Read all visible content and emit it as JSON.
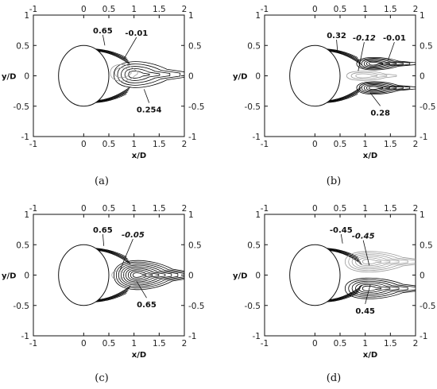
{
  "chart_data": [
    {
      "type": "contour",
      "panel": "(a)",
      "xlabel": "x/D",
      "ylabel": "y/D",
      "xlim": [
        -1,
        2
      ],
      "ylim": [
        -1,
        1
      ],
      "x_ticks": [
        "-1",
        "0",
        "0.5",
        "1",
        "1.5",
        "2"
      ],
      "y_ticks": [
        "-1",
        "-0.5",
        "0",
        "0.5",
        "1"
      ],
      "cylinder": {
        "center": [
          0,
          0
        ],
        "radius": 0.5
      },
      "lobes": [
        {
          "cx": 1.0,
          "cy": 0.02,
          "rx": 0.4,
          "ry": 0.25,
          "tail": 0.72,
          "levels": 5,
          "sign": "positive",
          "color": "#000000"
        },
        {
          "cx": 0.75,
          "cy": 0.05,
          "rx": 0.22,
          "ry": 0.16,
          "tail": 0.1,
          "levels": 2,
          "sign": "negative",
          "color": "#9a9a9a"
        }
      ],
      "shear_layers": true,
      "annotations": [
        {
          "text": "0.65",
          "x": 0.38,
          "y": 0.7,
          "tip": [
            0.42,
            0.5
          ],
          "italic": false
        },
        {
          "text": "-0.01",
          "x": 1.05,
          "y": 0.66,
          "tip": [
            0.8,
            0.28
          ],
          "italic": false
        },
        {
          "text": "0.254",
          "x": 1.3,
          "y": -0.55,
          "tip": [
            1.2,
            -0.22
          ],
          "italic": false
        }
      ]
    },
    {
      "type": "contour",
      "panel": "(b)",
      "xlabel": "x/D",
      "ylabel": "y/D",
      "xlim": [
        -1,
        2
      ],
      "ylim": [
        -1,
        1
      ],
      "x_ticks": [
        "-1",
        "0",
        "0.5",
        "1",
        "1.5",
        "2"
      ],
      "y_ticks": [
        "-1",
        "-0.5",
        "0",
        "0.5",
        "1"
      ],
      "cylinder": {
        "center": [
          0,
          0
        ],
        "radius": 0.5
      },
      "lobes": [
        {
          "cx": 1.15,
          "cy": 0.2,
          "rx": 0.32,
          "ry": 0.12,
          "tail": 0.55,
          "levels": 6,
          "sign": "positive",
          "color": "#000000"
        },
        {
          "cx": 1.15,
          "cy": -0.2,
          "rx": 0.32,
          "ry": 0.12,
          "tail": 0.55,
          "levels": 6,
          "sign": "positive",
          "color": "#000000"
        },
        {
          "cx": 0.95,
          "cy": 0.0,
          "rx": 0.32,
          "ry": 0.09,
          "tail": 0.35,
          "levels": 3,
          "sign": "negative",
          "color": "#9a9a9a"
        }
      ],
      "shear_layers": true,
      "annotations": [
        {
          "text": "0.32",
          "x": 0.43,
          "y": 0.62,
          "tip": [
            0.45,
            0.4
          ],
          "italic": false
        },
        {
          "text": "-0.12",
          "x": 0.98,
          "y": 0.58,
          "tip": [
            0.86,
            0.08
          ],
          "italic": true
        },
        {
          "text": "-0.01",
          "x": 1.58,
          "y": 0.58,
          "tip": [
            1.45,
            0.25
          ],
          "italic": false
        },
        {
          "text": "0.28",
          "x": 1.3,
          "y": -0.6,
          "tip": [
            1.1,
            -0.28
          ],
          "italic": false
        }
      ]
    },
    {
      "type": "contour",
      "panel": "(c)",
      "xlabel": "x/D",
      "ylabel": "y/D",
      "xlim": [
        -1,
        2
      ],
      "ylim": [
        -1,
        1
      ],
      "x_ticks": [
        "-1",
        "0",
        "0.5",
        "1",
        "1.5",
        "2"
      ],
      "y_ticks": [
        "-1",
        "-0.5",
        "0",
        "0.5",
        "1"
      ],
      "cylinder": {
        "center": [
          0,
          0
        ],
        "radius": 0.5
      },
      "lobes": [
        {
          "cx": 1.05,
          "cy": 0.0,
          "rx": 0.45,
          "ry": 0.28,
          "tail": 0.75,
          "levels": 9,
          "sign": "positive",
          "color": "#000000"
        },
        {
          "cx": 0.68,
          "cy": 0.0,
          "rx": 0.12,
          "ry": 0.08,
          "tail": 0.0,
          "levels": 1,
          "sign": "negative",
          "color": "#9a9a9a"
        }
      ],
      "shear_layers": true,
      "annotations": [
        {
          "text": "0.65",
          "x": 0.38,
          "y": 0.7,
          "tip": [
            0.4,
            0.48
          ],
          "italic": false
        },
        {
          "text": "-0.05",
          "x": 0.98,
          "y": 0.62,
          "tip": [
            0.72,
            0.08
          ],
          "italic": true
        },
        {
          "text": "0.65",
          "x": 1.25,
          "y": -0.48,
          "tip": [
            1.05,
            -0.1
          ],
          "italic": false
        }
      ]
    },
    {
      "type": "contour",
      "panel": "(d)",
      "xlabel": "x/D",
      "ylabel": "y/D",
      "xlim": [
        -1,
        2
      ],
      "ylim": [
        -1,
        1
      ],
      "x_ticks": [
        "-1",
        "0",
        "0.5",
        "1",
        "1.5",
        "2"
      ],
      "y_ticks": [
        "-1",
        "-0.5",
        "0",
        "0.5",
        "1"
      ],
      "cylinder": {
        "center": [
          0,
          0
        ],
        "radius": 0.5
      },
      "lobes": [
        {
          "cx": 1.05,
          "cy": 0.22,
          "rx": 0.45,
          "ry": 0.2,
          "tail": 0.7,
          "levels": 6,
          "sign": "negative",
          "color": "#9a9a9a"
        },
        {
          "cx": 1.05,
          "cy": -0.22,
          "rx": 0.45,
          "ry": 0.2,
          "tail": 0.7,
          "levels": 6,
          "sign": "positive",
          "color": "#000000"
        }
      ],
      "shear_layers": true,
      "annotations": [
        {
          "text": "-0.45",
          "x": 0.52,
          "y": 0.7,
          "tip": [
            0.55,
            0.52
          ],
          "italic": false
        },
        {
          "text": "-0.45",
          "x": 0.96,
          "y": 0.6,
          "tip": [
            1.08,
            0.16
          ],
          "italic": true
        },
        {
          "text": "0.45",
          "x": 1.0,
          "y": -0.58,
          "tip": [
            1.1,
            -0.16
          ],
          "italic": false
        }
      ]
    }
  ]
}
